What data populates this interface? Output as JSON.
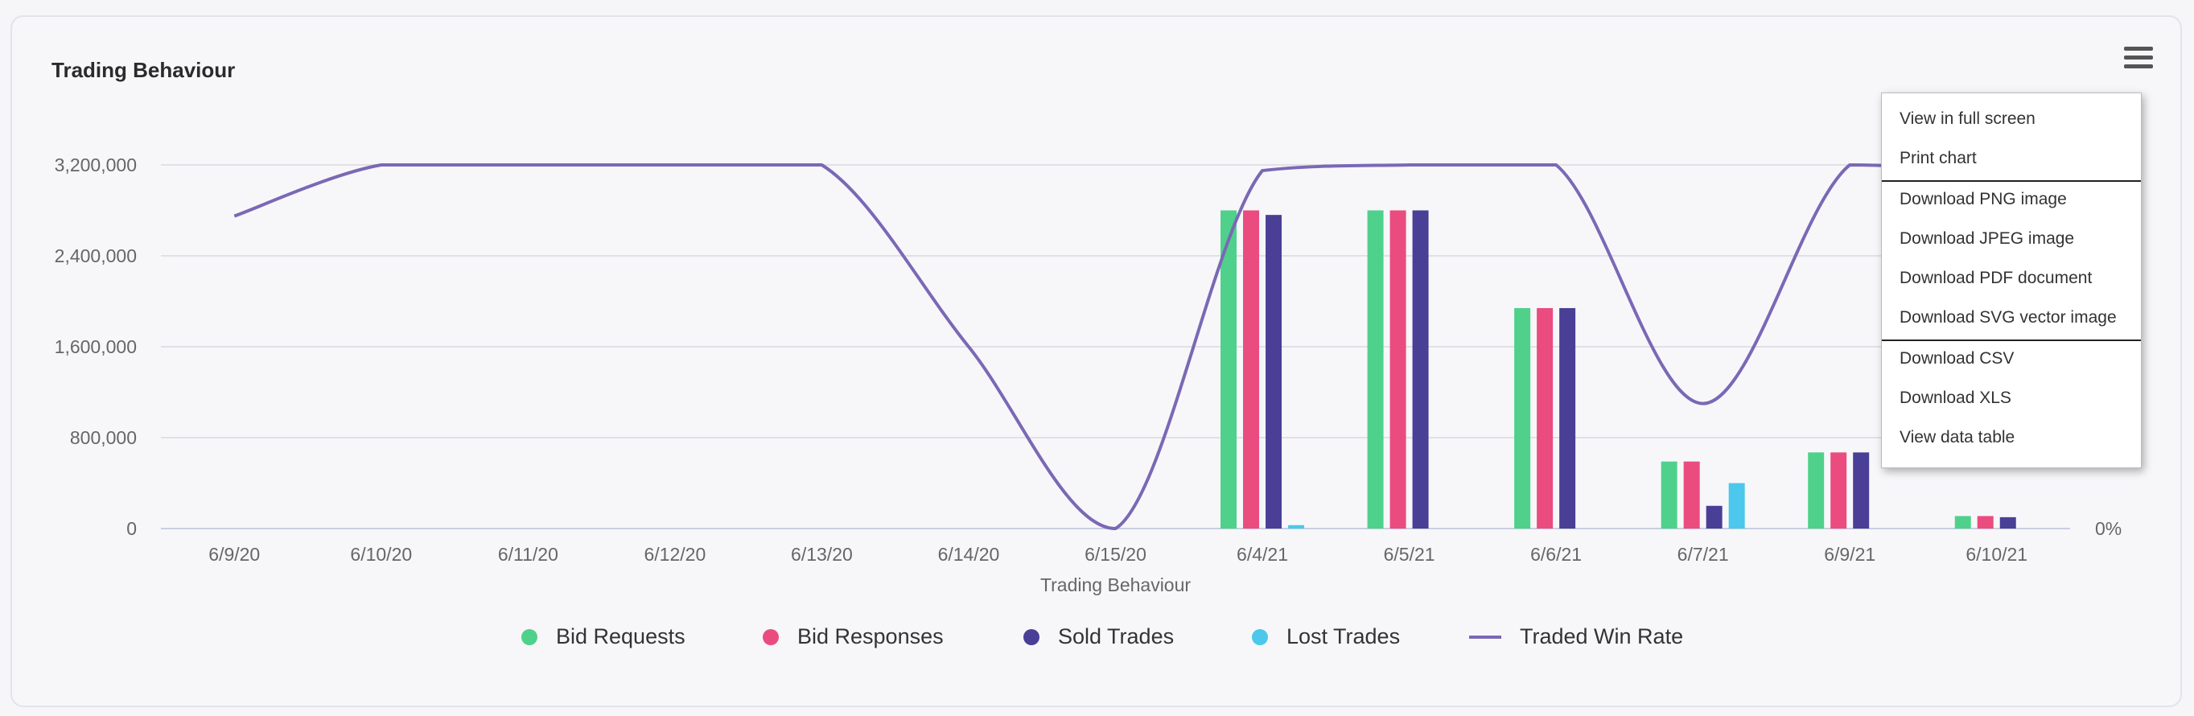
{
  "header": {
    "title": "Trading Behaviour"
  },
  "menu": {
    "items": [
      "View in full screen",
      "Print chart",
      "Download PNG image",
      "Download JPEG image",
      "Download PDF document",
      "Download SVG vector image",
      "Download CSV",
      "Download XLS",
      "View data table"
    ]
  },
  "chart_data": {
    "type": "bar",
    "title": "",
    "xlabel": "Trading Behaviour",
    "ylabel": "",
    "categories": [
      "6/9/20",
      "6/10/20",
      "6/11/20",
      "6/12/20",
      "6/13/20",
      "6/14/20",
      "6/15/20",
      "6/4/21",
      "6/5/21",
      "6/6/21",
      "6/7/21",
      "6/9/21",
      "6/10/21"
    ],
    "ylim": [
      0,
      3200000
    ],
    "yticks": [
      "0",
      "800,000",
      "1,600,000",
      "2,400,000",
      "3,200,000"
    ],
    "y2ticks": [
      "0%"
    ],
    "grid": true,
    "legend_position": "bottom",
    "series": [
      {
        "name": "Bid Requests",
        "type": "bar",
        "color": "#4fd18b",
        "values": [
          0,
          0,
          0,
          0,
          0,
          0,
          0,
          2800000,
          2800000,
          1940000,
          590000,
          670000,
          110000
        ]
      },
      {
        "name": "Bid Responses",
        "type": "bar",
        "color": "#ea4c7f",
        "values": [
          0,
          0,
          0,
          0,
          0,
          0,
          0,
          2800000,
          2800000,
          1940000,
          590000,
          670000,
          110000
        ]
      },
      {
        "name": "Sold Trades",
        "type": "bar",
        "color": "#4a3f96",
        "values": [
          0,
          0,
          0,
          0,
          0,
          0,
          0,
          2760000,
          2800000,
          1940000,
          200000,
          670000,
          100000
        ]
      },
      {
        "name": "Lost Trades",
        "type": "bar",
        "color": "#4bc8ec",
        "values": [
          0,
          0,
          0,
          0,
          0,
          0,
          0,
          30000,
          0,
          0,
          400000,
          0,
          0
        ]
      },
      {
        "name": "Traded Win Rate",
        "type": "line",
        "color": "#7b68b5",
        "values": [
          2750000,
          3200000,
          3200000,
          3200000,
          3200000,
          1600000,
          0,
          3150000,
          3200000,
          3200000,
          1100000,
          3200000,
          3150000
        ]
      }
    ]
  }
}
